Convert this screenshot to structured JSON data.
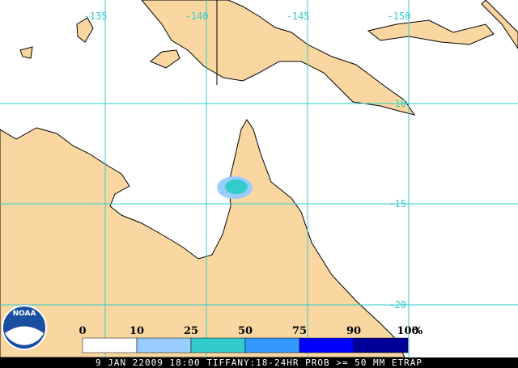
{
  "map": {
    "longitude_labels": [
      "-135",
      "-140",
      "-145",
      "-150"
    ],
    "latitude_labels": [
      "-10",
      "-15",
      "-20"
    ]
  },
  "legend": {
    "labels": [
      "0",
      "10",
      "25",
      "50",
      "75",
      "90",
      "100"
    ],
    "unit": "%",
    "colors": [
      "#ffffff",
      "#99ccff",
      "#33cccc",
      "#3399ff",
      "#0000ff",
      "#000099"
    ]
  },
  "logo": "NOAA",
  "caption": "9 JAN 22009 18:00 TIFFANY:18-24HR PROB >= 50 MM ETRAP"
}
